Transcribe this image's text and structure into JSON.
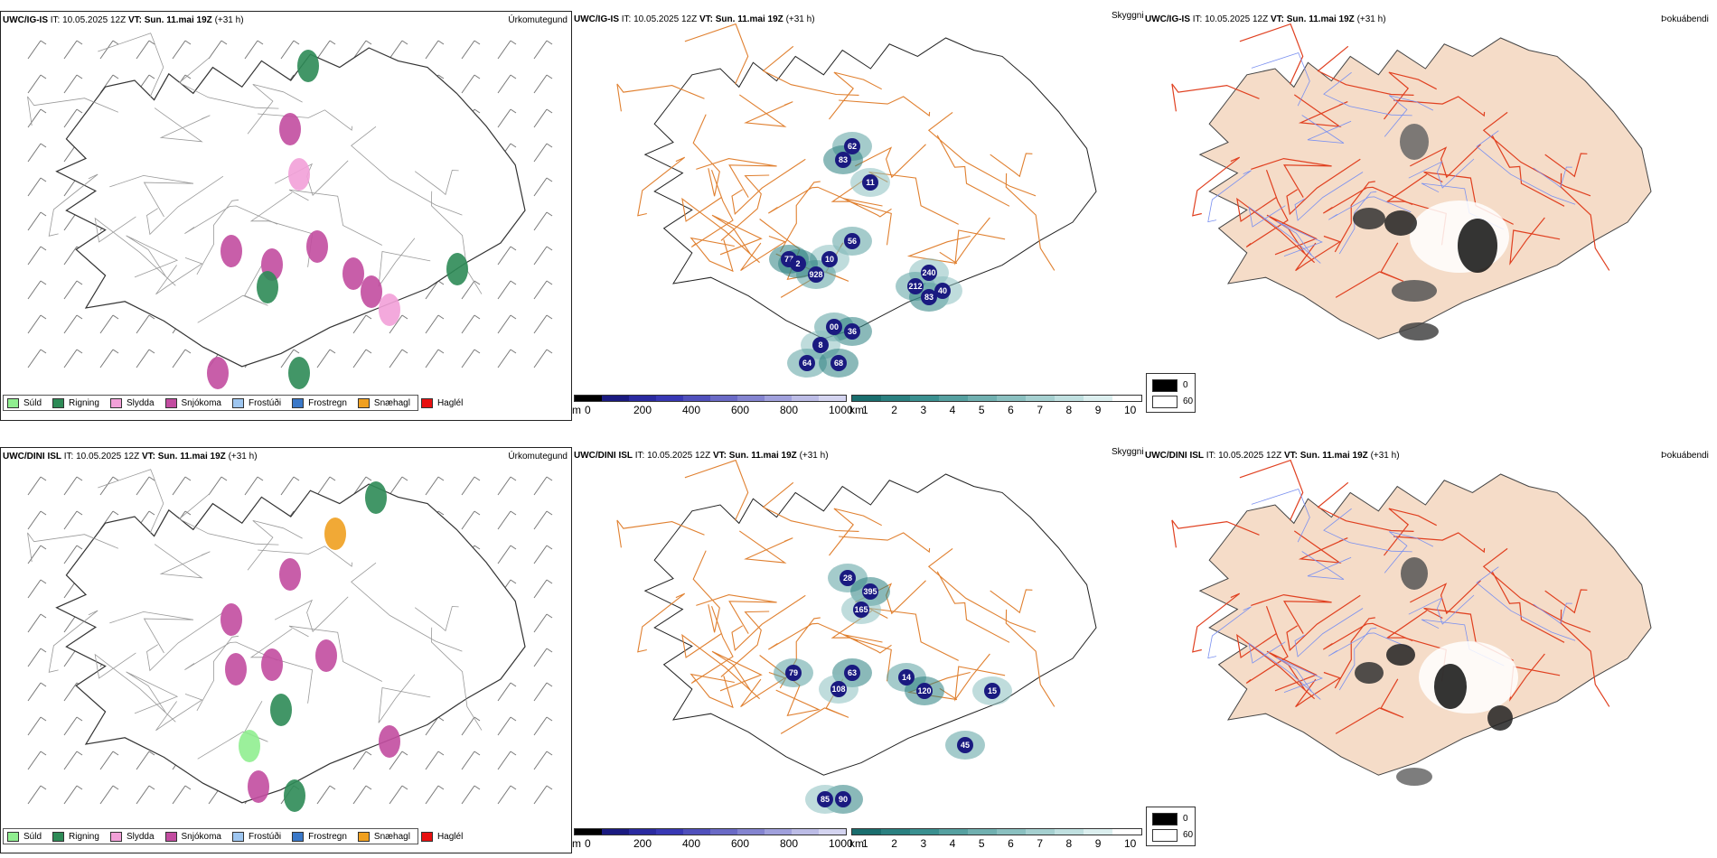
{
  "rows": [
    {
      "id": "igis",
      "model": "UWC/IG-IS",
      "it_label": "IT:",
      "it_value": "10.05.2025 12Z",
      "vt_label": "VT:",
      "vt_value": "Sun. 11.mai 19Z",
      "lead": "(+31 h)",
      "panel1_type": "Úrkomutegund",
      "panel2_type": "Skyggni",
      "panel3_type": "Þokuábendi",
      "cloud_labels": [
        "62",
        "83",
        "11",
        "56",
        "77",
        "10",
        "928",
        "2",
        "240",
        "212",
        "83",
        "40",
        "00",
        "36",
        "8",
        "64",
        "68"
      ]
    },
    {
      "id": "dini",
      "model": "UWC/DINI ISL",
      "it_label": "IT:",
      "it_value": "10.05.2025 12Z",
      "vt_label": "VT:",
      "vt_value": "Sun. 11.mai 19Z",
      "lead": "(+31 h)",
      "panel1_type": "Úrkomutegund",
      "panel2_type": "Skyggni",
      "panel3_type": "Þokuábendi",
      "cloud_labels": [
        "28",
        "395",
        "165",
        "79",
        "63",
        "108",
        "14",
        "120",
        "15",
        "45",
        "90",
        "85"
      ]
    }
  ],
  "precip_legend": [
    {
      "label": "Súld",
      "color": "#90ee90"
    },
    {
      "label": "Rigning",
      "color": "#2e8b57"
    },
    {
      "label": "Slydda",
      "color": "#f2a0d8"
    },
    {
      "label": "Snjókoma",
      "color": "#c24ca0"
    },
    {
      "label": "Frostúði",
      "color": "#9ec6f0"
    },
    {
      "label": "Frostregn",
      "color": "#3a78c8"
    },
    {
      "label": "Snæhagl",
      "color": "#f0a020"
    },
    {
      "label": "Haglél",
      "color": "#e81010"
    }
  ],
  "ceiling_bar": {
    "unit": "m",
    "ticks": [
      "0",
      "200",
      "400",
      "600",
      "800",
      "1000"
    ],
    "colors": [
      "#000000",
      "#1a1a80",
      "#2a2aa0",
      "#3838b4",
      "#5050bc",
      "#6a6ac6",
      "#8484d0",
      "#a0a0dc",
      "#bcbce6",
      "#d4d4f0"
    ]
  },
  "visibility_bar": {
    "unit": "km",
    "ticks": [
      "1",
      "2",
      "3",
      "4",
      "5",
      "6",
      "7",
      "8",
      "9",
      "10"
    ],
    "colors": [
      "#1a6e6e",
      "#2a8080",
      "#3a9090",
      "#55a0a0",
      "#70b0b0",
      "#8ac0c0",
      "#a5d0d0",
      "#c0e0e0",
      "#dcefef",
      "#ffffff"
    ]
  },
  "fog_legend": {
    "high": "0",
    "low": "60"
  }
}
